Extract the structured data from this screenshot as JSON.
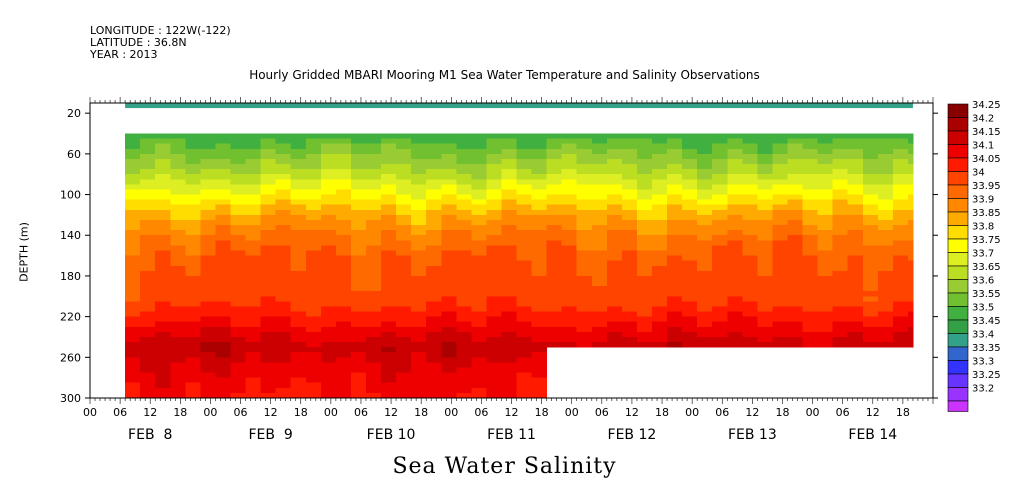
{
  "header": {
    "longitude": "LONGITUDE : 122W(-122)",
    "latitude": "LATITUDE : 36.8N",
    "year": "YEAR : 2013"
  },
  "colors": {
    "scale": [
      "#cc33ff",
      "#9933ff",
      "#6633ff",
      "#3333ff",
      "#3366cc",
      "#33a089",
      "#33a046",
      "#40b040",
      "#70c030",
      "#99cc33",
      "#bbdd22",
      "#ddee22",
      "#ffff00",
      "#ffdd00",
      "#ffaa00",
      "#ff8800",
      "#ff6a00",
      "#ff4400",
      "#ff1a00",
      "#ee0000",
      "#cc0000",
      "#aa0000",
      "#880000"
    ]
  },
  "chart_data": {
    "type": "heatmap",
    "title": "Hourly Gridded MBARI Mooring M1 Sea Water Temperature and Salinity Observations",
    "variable": "Sea Water Salinity",
    "ylabel": "DEPTH (m)",
    "xlabel": "",
    "ylim": [
      300,
      10
    ],
    "y_ticks": [
      20,
      60,
      100,
      140,
      180,
      220,
      260,
      300
    ],
    "x_hour_ticks": [
      "00",
      "06",
      "12",
      "18",
      "00",
      "06",
      "12",
      "18",
      "00",
      "06",
      "12",
      "18",
      "00",
      "06",
      "12",
      "18",
      "00",
      "06",
      "12",
      "18",
      "00",
      "06",
      "12",
      "18",
      "00",
      "06",
      "12",
      "18"
    ],
    "x_day_labels": [
      "FEB  8",
      "FEB  9",
      "FEB 10",
      "FEB 11",
      "FEB 12",
      "FEB 13",
      "FEB 14"
    ],
    "legend_levels": [
      "34.25",
      "34.2",
      "34.15",
      "34.1",
      "34.05",
      "34",
      "33.95",
      "33.9",
      "33.85",
      "33.8",
      "33.75",
      "33.7",
      "33.65",
      "33.6",
      "33.55",
      "33.5",
      "33.45",
      "33.4",
      "33.35",
      "33.3",
      "33.25",
      "33.2"
    ],
    "legend_placement": "right",
    "depth_profile": [
      {
        "depth": 10,
        "salinity": 33.42
      },
      {
        "depth": 40,
        "salinity": 33.52
      },
      {
        "depth": 60,
        "salinity": 33.6
      },
      {
        "depth": 80,
        "salinity": 33.68
      },
      {
        "depth": 100,
        "salinity": 33.78
      },
      {
        "depth": 120,
        "salinity": 33.88
      },
      {
        "depth": 140,
        "salinity": 33.95
      },
      {
        "depth": 160,
        "salinity": 34.0
      },
      {
        "depth": 200,
        "salinity": 34.02
      },
      {
        "depth": 220,
        "salinity": 34.08
      },
      {
        "depth": 250,
        "salinity": 34.18
      },
      {
        "depth": 280,
        "salinity": 34.12
      },
      {
        "depth": 300,
        "salinity": 34.1
      }
    ],
    "data_start_hour": 7,
    "data_end_hour": 164,
    "surface_band_depth": [
      10,
      15
    ],
    "missing_band_depth": [
      15,
      40
    ],
    "deep_data_end_hour": 91,
    "deep_data_min_depth": 250
  }
}
